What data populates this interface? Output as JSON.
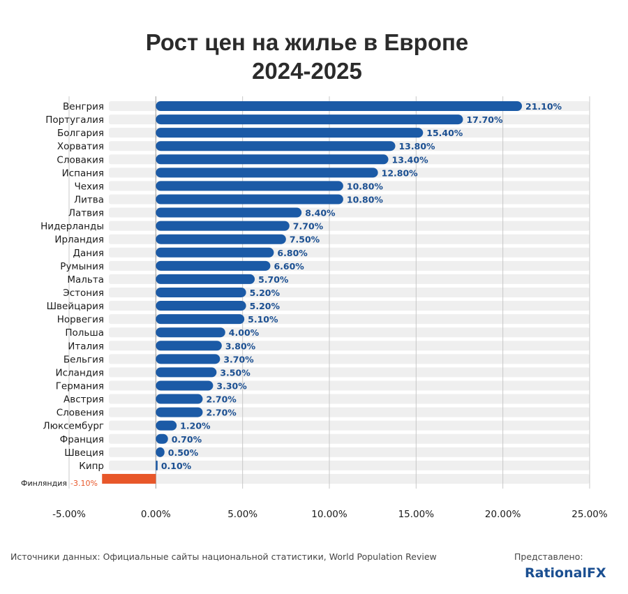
{
  "chart_data": {
    "type": "bar",
    "orientation": "horizontal",
    "title": [
      "Рост цен на жилье в Европе",
      "2024-2025"
    ],
    "categories": [
      "Венгрия",
      "Португалия",
      "Болгария",
      "Хорватия",
      "Словакия",
      "Испания",
      "Чехия",
      "Литва",
      "Латвия",
      "Нидерланды",
      "Ирландия",
      "Дания",
      "Румыния",
      "Мальта",
      "Эстония",
      "Швейцария",
      "Норвегия",
      "Польша",
      "Италия",
      "Бельгия",
      "Исландия",
      "Германия",
      "Австрия",
      "Словения",
      "Люксембург",
      "Франция",
      "Швеция",
      "Кипр",
      "Финляндия"
    ],
    "values": [
      21.1,
      17.7,
      15.4,
      13.8,
      13.4,
      12.8,
      10.8,
      10.8,
      8.4,
      7.7,
      7.5,
      6.8,
      6.6,
      5.7,
      5.2,
      5.2,
      5.1,
      4.0,
      3.8,
      3.7,
      3.5,
      3.3,
      2.7,
      2.7,
      1.2,
      0.7,
      0.5,
      0.1,
      -3.1
    ],
    "value_labels": [
      "21.10%",
      "17.70%",
      "15.40%",
      "13.80%",
      "13.40%",
      "12.80%",
      "10.80%",
      "10.80%",
      "8.40%",
      "7.70%",
      "7.50%",
      "6.80%",
      "6.60%",
      "5.70%",
      "5.20%",
      "5.20%",
      "5.10%",
      "4.00%",
      "3.80%",
      "3.70%",
      "3.50%",
      "3.30%",
      "2.70%",
      "2.70%",
      "1.20%",
      "0.70%",
      "0.50%",
      "0.10%",
      "-3.10%"
    ],
    "xlim": [
      -5,
      25
    ],
    "xticks": [
      -5,
      0,
      5,
      10,
      15,
      20,
      25
    ],
    "xtick_labels": [
      "-5.00%",
      "0.00%",
      "5.00%",
      "10.00%",
      "15.00%",
      "20.00%",
      "25.00%"
    ],
    "xlabel": "",
    "ylabel": "",
    "grid": true,
    "colors": {
      "positive": "#1b5aa6",
      "negative": "#e8572a",
      "track": "#efefef",
      "grid": "#c8c8c8",
      "value_text": "#1b4f91"
    }
  },
  "footer": {
    "source": "Источники данных: Официальные сайты национальной статистики, World Population Review",
    "presented_by": "Представлено:",
    "brand": "RationalFX"
  }
}
